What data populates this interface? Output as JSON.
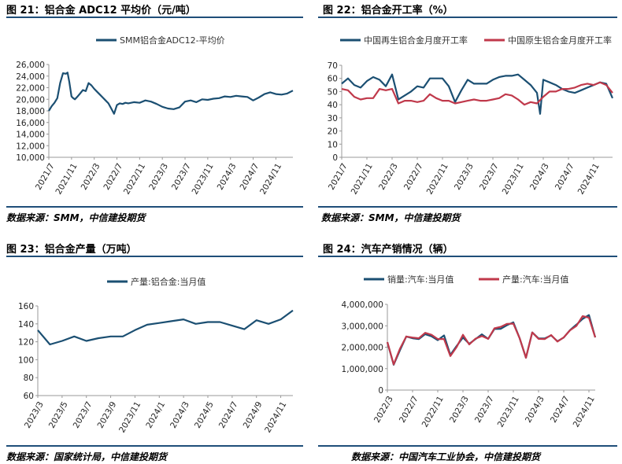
{
  "panels": {
    "p21": {
      "title": "图 21：铝合金 ADC12 平均价（元/吨）",
      "source": "数据来源：SMM，中信建投期货"
    },
    "p22": {
      "title": "图 22：铝合金开工率（%）",
      "source": "数据来源：SMM，中信建投期货"
    },
    "p23": {
      "title": "图 23：铝合金产量（万吨）",
      "source": "数据来源：国家统计局，中信建投期货"
    },
    "p24": {
      "title": "图 24：汽车产销情况（辆）",
      "source": "数据来源：中国汽车工业协会，中信建投期货"
    }
  },
  "colors": {
    "blue": "#1b4f72",
    "red": "#c0394b",
    "rule": "#1f4e79",
    "axis": "#999999"
  },
  "chart_data": [
    {
      "id": "c21",
      "type": "line",
      "legend_position": "top",
      "ylim": [
        10000,
        26000
      ],
      "yticks": [
        10000,
        12000,
        14000,
        16000,
        18000,
        20000,
        22000,
        24000,
        26000
      ],
      "ytick_labels": [
        "10,000",
        "12,000",
        "14,000",
        "16,000",
        "18,000",
        "20,000",
        "22,000",
        "24,000",
        "26,000"
      ],
      "xlim": [
        0,
        43
      ],
      "xticks": [
        0,
        4,
        8,
        12,
        16,
        20,
        24,
        28,
        32,
        36,
        40
      ],
      "xtick_labels": [
        "2021/7",
        "2021/11",
        "2022/3",
        "2022/7",
        "2022/11",
        "2023/3",
        "2023/7",
        "2023/11",
        "2024/3",
        "2024/7",
        "2024/11"
      ],
      "series": [
        {
          "name": "SMM铝合金ADC12-平均价",
          "color": "#1b4f72",
          "x": [
            0,
            0.5,
            1,
            1.5,
            2,
            2.5,
            3,
            3.3,
            3.6,
            4,
            4.3,
            4.6,
            5,
            5.5,
            6,
            6.5,
            7,
            7.5,
            8,
            8.5,
            9,
            9.5,
            10,
            10.5,
            11,
            11.5,
            12,
            12.5,
            13,
            13.5,
            14,
            15,
            16,
            17,
            18,
            19,
            20,
            21,
            22,
            23,
            24,
            25,
            26,
            27,
            28,
            29,
            30,
            31,
            32,
            33,
            34,
            35,
            36,
            37,
            38,
            39,
            40,
            41,
            42,
            43
          ],
          "y": [
            18000,
            18800,
            19400,
            20200,
            22800,
            24500,
            24400,
            24600,
            23000,
            20500,
            20200,
            20000,
            20400,
            21000,
            21600,
            21400,
            22800,
            22400,
            21800,
            21300,
            20800,
            20300,
            19800,
            19300,
            18400,
            17500,
            19000,
            19300,
            19200,
            19400,
            19300,
            19500,
            19400,
            19800,
            19600,
            19200,
            18700,
            18400,
            18300,
            18600,
            19600,
            19800,
            19500,
            20000,
            19900,
            20100,
            20200,
            20500,
            20400,
            20600,
            20500,
            20400,
            19800,
            20300,
            20900,
            21200,
            20900,
            20800,
            21000,
            21500
          ]
        }
      ]
    },
    {
      "id": "c22",
      "type": "line",
      "legend_position": "top",
      "ylim": [
        0,
        70
      ],
      "yticks": [
        0,
        10,
        20,
        30,
        40,
        50,
        60,
        70
      ],
      "ytick_labels": [
        "0",
        "10",
        "20",
        "30",
        "40",
        "50",
        "60",
        "70"
      ],
      "xlim": [
        0,
        43
      ],
      "xticks": [
        0,
        4,
        8,
        12,
        16,
        20,
        24,
        28,
        32,
        36,
        40
      ],
      "xtick_labels": [
        "2021/7",
        "2021/11",
        "2022/3",
        "2022/7",
        "2022/11",
        "2023/3",
        "2023/7",
        "2023/11",
        "2024/3",
        "2024/7",
        "2024/11"
      ],
      "series": [
        {
          "name": "中国再生铝合金月度开工率",
          "color": "#1b4f72",
          "x": [
            0,
            1,
            2,
            3,
            4,
            5,
            6,
            7,
            8,
            9,
            10,
            11,
            12,
            13,
            14,
            15,
            16,
            17,
            18,
            19,
            20,
            21,
            22,
            23,
            24,
            25,
            26,
            27,
            28,
            29,
            30,
            31,
            31.5,
            32,
            33,
            34,
            35,
            36,
            37,
            38,
            39,
            40,
            41,
            42,
            43
          ],
          "y": [
            56,
            60,
            55,
            53,
            58,
            61,
            59,
            54,
            63,
            44,
            47,
            50,
            54,
            53,
            60,
            60,
            60,
            54,
            42,
            51,
            59,
            56,
            56,
            56,
            59,
            61,
            62,
            62,
            63,
            59,
            55,
            49,
            33,
            59,
            57,
            55,
            52,
            50,
            49,
            51,
            53,
            55,
            57,
            56,
            45
          ]
        },
        {
          "name": "中国原生铝合金月度开工率",
          "color": "#c0394b",
          "x": [
            0,
            1,
            2,
            3,
            4,
            5,
            6,
            7,
            8,
            9,
            10,
            11,
            12,
            13,
            14,
            15,
            16,
            17,
            18,
            19,
            20,
            21,
            22,
            23,
            24,
            25,
            26,
            27,
            28,
            29,
            30,
            31,
            32,
            33,
            34,
            35,
            36,
            37,
            38,
            39,
            40,
            41,
            42,
            43
          ],
          "y": [
            52,
            51,
            46,
            44,
            45,
            45,
            52,
            51,
            52,
            41,
            43,
            43,
            42,
            43,
            48,
            45,
            43,
            43,
            41,
            42,
            43,
            44,
            43,
            43,
            44,
            45,
            48,
            47,
            44,
            40,
            42,
            41,
            46,
            50,
            50,
            52,
            52,
            53,
            55,
            56,
            55,
            57,
            55,
            49
          ]
        }
      ]
    },
    {
      "id": "c23",
      "type": "line",
      "legend_position": "top",
      "ylim": [
        60,
        160
      ],
      "yticks": [
        60,
        80,
        100,
        120,
        140,
        160
      ],
      "ytick_labels": [
        "60",
        "80",
        "100",
        "120",
        "140",
        "160"
      ],
      "xlim": [
        0,
        21
      ],
      "xticks": [
        0,
        2,
        4,
        6,
        8,
        10,
        12,
        14,
        16,
        18,
        20
      ],
      "xtick_labels": [
        "2023/3",
        "2023/5",
        "2023/7",
        "2023/9",
        "2023/11",
        "2024/1",
        "2024/3",
        "2024/5",
        "2024/7",
        "2024/9",
        "2024/11"
      ],
      "series": [
        {
          "name": "产量:铝合金:当月值",
          "color": "#1b4f72",
          "x": [
            0,
            1,
            2,
            3,
            4,
            5,
            6,
            7,
            8,
            9,
            10,
            11,
            12,
            13,
            14,
            15,
            16,
            17,
            18,
            19,
            20,
            21
          ],
          "y": [
            133,
            117,
            121,
            126,
            121,
            124,
            126,
            126,
            133,
            139,
            141,
            143,
            145,
            140,
            142,
            142,
            138,
            134,
            144,
            140,
            145,
            155
          ]
        }
      ]
    },
    {
      "id": "c24",
      "type": "line",
      "legend_position": "top",
      "ylim": [
        0,
        4000000
      ],
      "yticks": [
        0,
        1000000,
        2000000,
        3000000,
        4000000
      ],
      "ytick_labels": [
        "0",
        "1,000,000",
        "2,000,000",
        "3,000,000",
        "4,000,000"
      ],
      "xlim": [
        0,
        33
      ],
      "xticks": [
        0,
        4,
        8,
        12,
        16,
        20,
        24,
        28,
        32
      ],
      "xtick_labels": [
        "2022/3",
        "2022/7",
        "2022/11",
        "2023/3",
        "2023/7",
        "2023/11",
        "2024/3",
        "2024/7",
        "2024/11"
      ],
      "series": [
        {
          "name": "销量:汽车:当月值",
          "color": "#1b4f72",
          "x": [
            0,
            1,
            2,
            3,
            4,
            5,
            6,
            7,
            8,
            9,
            10,
            11,
            12,
            13,
            14,
            15,
            16,
            17,
            18,
            19,
            20,
            21,
            22,
            23,
            24,
            25,
            26,
            27,
            28,
            29,
            30,
            31,
            32,
            33
          ],
          "y": [
            2230000,
            1180000,
            1860000,
            2500000,
            2420000,
            2380000,
            2610000,
            2510000,
            2330000,
            2550000,
            1640000,
            2060000,
            2450000,
            2160000,
            2380000,
            2600000,
            2390000,
            2850000,
            2860000,
            3030000,
            3160000,
            2420000,
            1510000,
            2690000,
            2410000,
            2410000,
            2550000,
            2280000,
            2450000,
            2800000,
            3050000,
            3320000,
            3500000,
            2460000
          ]
        },
        {
          "name": "产量:汽车:当月值",
          "color": "#c0394b",
          "x": [
            0,
            1,
            2,
            3,
            4,
            5,
            6,
            7,
            8,
            9,
            10,
            11,
            12,
            13,
            14,
            15,
            16,
            17,
            18,
            19,
            20,
            21,
            22,
            23,
            24,
            25,
            26,
            27,
            28,
            29,
            30,
            31,
            32,
            33
          ],
          "y": [
            2240000,
            1200000,
            1930000,
            2500000,
            2450000,
            2420000,
            2670000,
            2580000,
            2380000,
            2380000,
            1590000,
            2010000,
            2580000,
            2130000,
            2400000,
            2520000,
            2390000,
            2880000,
            2950000,
            3090000,
            3100000,
            2420000,
            1510000,
            2690000,
            2390000,
            2380000,
            2570000,
            2260000,
            2460000,
            2790000,
            2990000,
            3450000,
            3380000,
            2460000
          ]
        }
      ]
    }
  ]
}
